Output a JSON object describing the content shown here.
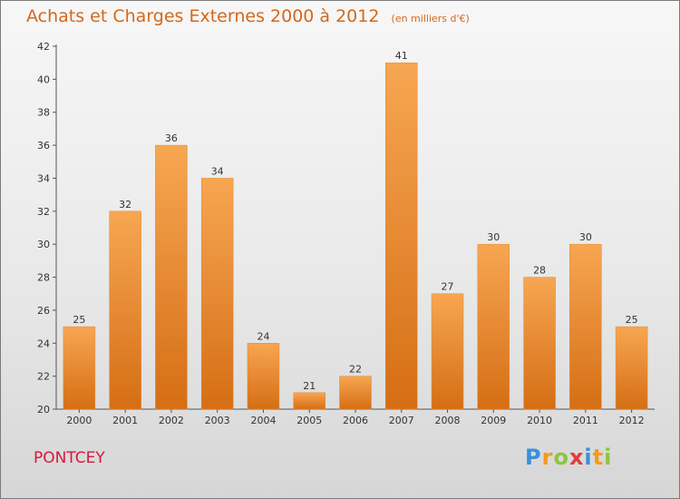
{
  "header": {
    "title": "Achats et Charges Externes 2000 à 2012",
    "unit": "(en milliers d'€)"
  },
  "commune": "PONTCEY",
  "logo": {
    "letters": [
      "P",
      "r",
      "o",
      "x",
      "i",
      "t",
      "i"
    ]
  },
  "colors": {
    "title": "#d4681b",
    "commune": "#d8173a",
    "bar_light": "#f7a652",
    "bar_dark": "#d56e15"
  },
  "chart_data": {
    "type": "bar",
    "title": "Achats et Charges Externes 2000 à 2012",
    "subtitle": "(en milliers d'€)",
    "xlabel": "",
    "ylabel": "",
    "categories": [
      "2000",
      "2001",
      "2002",
      "2003",
      "2004",
      "2005",
      "2006",
      "2007",
      "2008",
      "2009",
      "2010",
      "2011",
      "2012"
    ],
    "values": [
      25,
      32,
      36,
      34,
      24,
      21,
      22,
      41,
      27,
      30,
      28,
      30,
      25
    ],
    "ylim": [
      20,
      42
    ],
    "yticks": [
      20,
      22,
      24,
      26,
      28,
      30,
      32,
      34,
      36,
      38,
      40,
      42
    ],
    "grid": false,
    "legend": "none"
  }
}
